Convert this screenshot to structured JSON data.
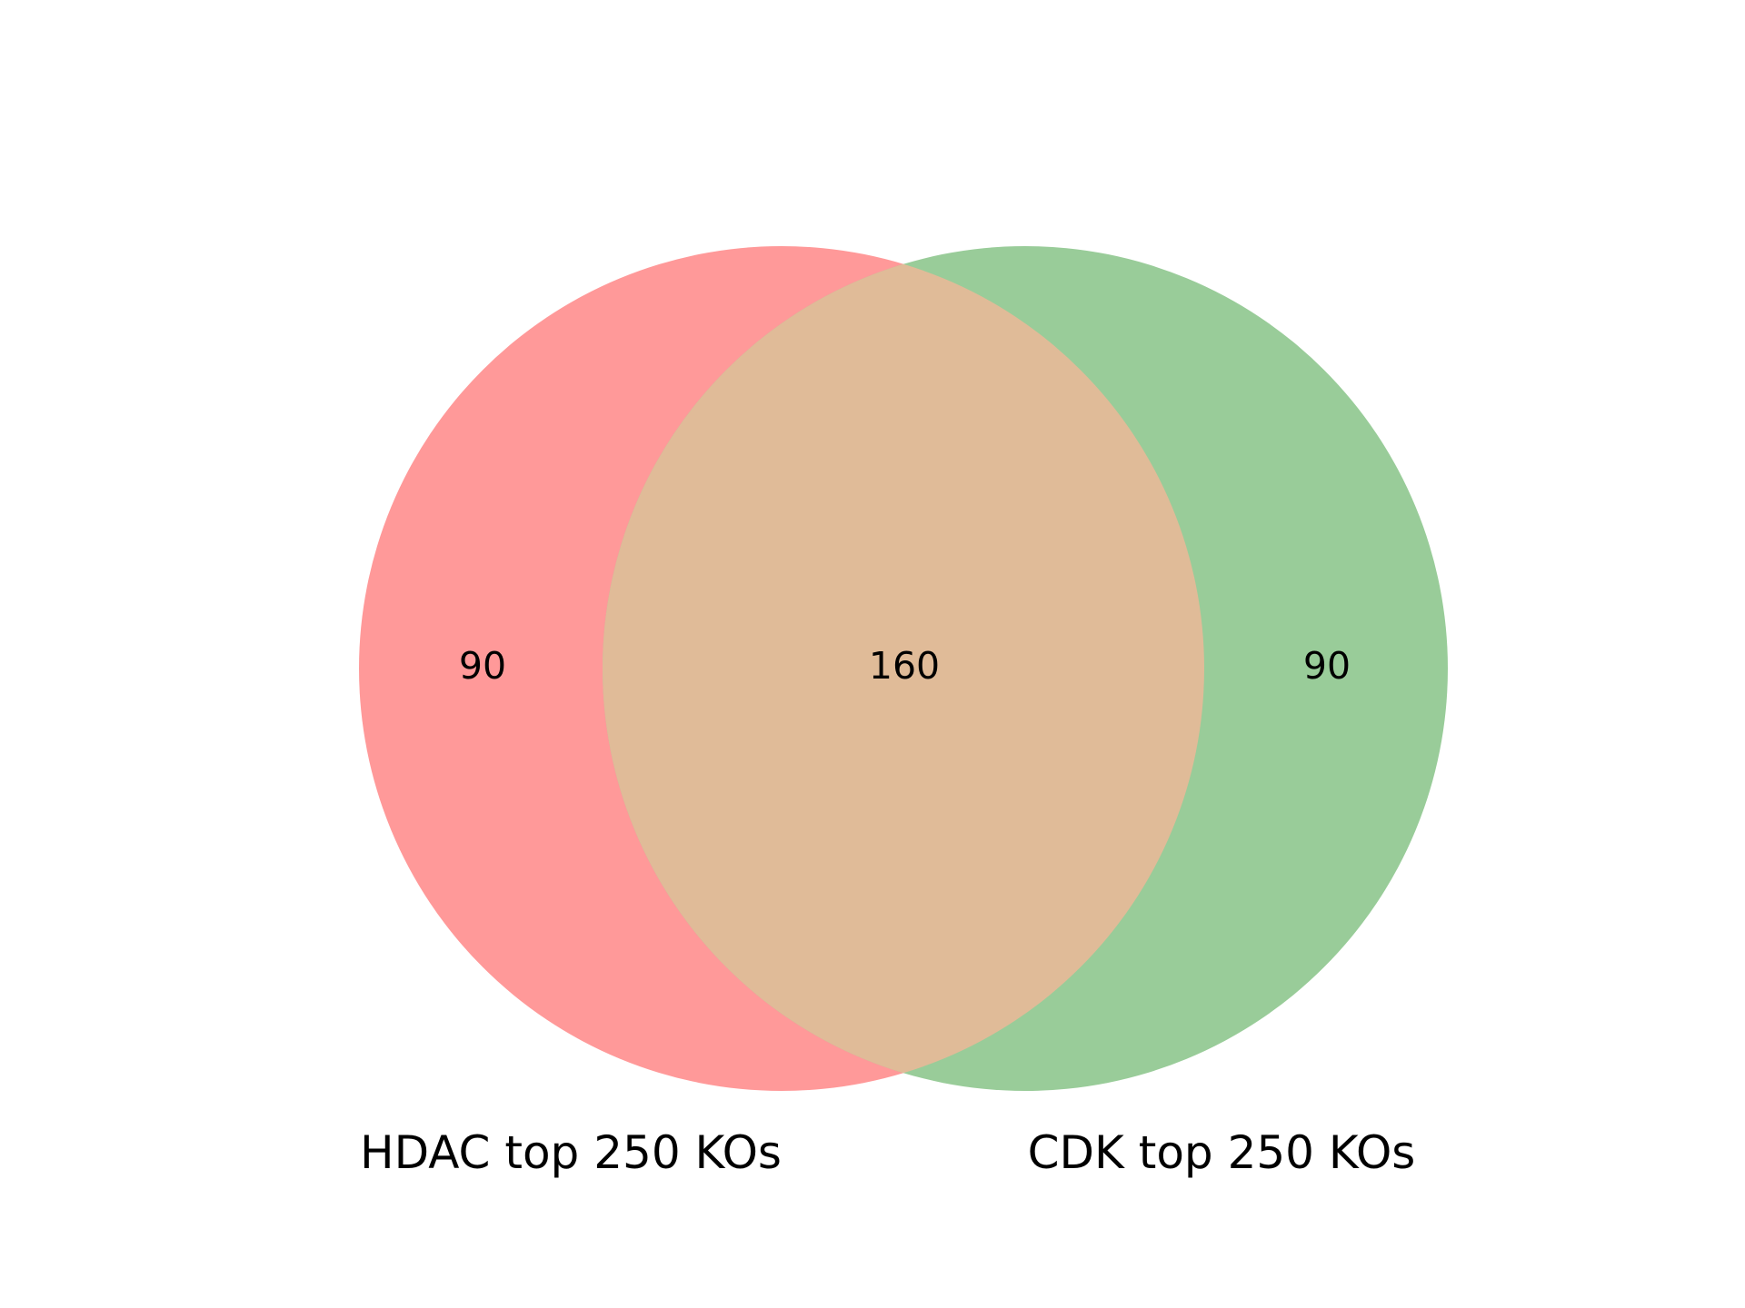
{
  "venn": {
    "sets": [
      {
        "name": "HDAC top 250 KOs",
        "color": "#ff9999"
      },
      {
        "name": "CDK top 250 KOs",
        "color": "#99cc99"
      }
    ],
    "regions": {
      "left_only": "90",
      "overlap": "160",
      "right_only": "90"
    },
    "overlap_color": "#e0bb98"
  }
}
